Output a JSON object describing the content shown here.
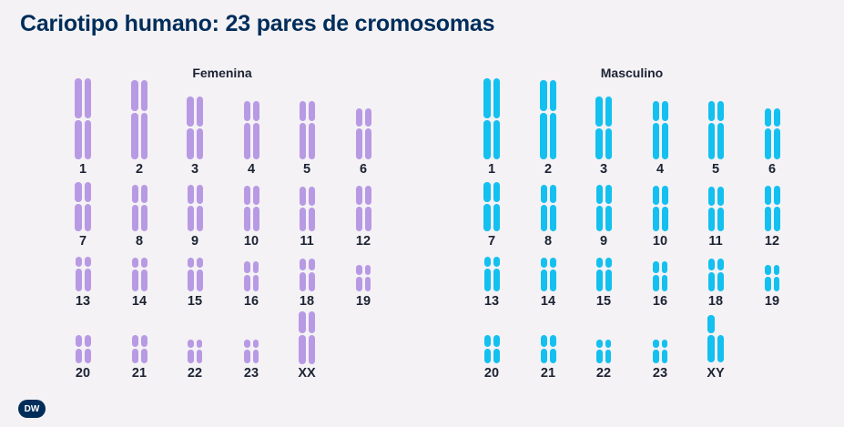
{
  "title": "Cariotipo humano: 23 pares de cromosomas",
  "logo_text": "DW",
  "colors": {
    "female": "#b89ae4",
    "male": "#14c0ef",
    "text": "#1c2233",
    "title": "#002d5a"
  },
  "panels": [
    {
      "id": "female",
      "title": "Femenina",
      "pairs": [
        {
          "label": "1"
        },
        {
          "label": "2"
        },
        {
          "label": "3"
        },
        {
          "label": "4"
        },
        {
          "label": "5"
        },
        {
          "label": "6"
        },
        {
          "label": "7"
        },
        {
          "label": "8"
        },
        {
          "label": "9"
        },
        {
          "label": "10"
        },
        {
          "label": "11"
        },
        {
          "label": "12"
        },
        {
          "label": "13"
        },
        {
          "label": "14"
        },
        {
          "label": "15"
        },
        {
          "label": "16"
        },
        {
          "label": "18"
        },
        {
          "label": "19"
        },
        {
          "label": "20"
        },
        {
          "label": "21"
        },
        {
          "label": "22"
        },
        {
          "label": "23"
        },
        {
          "label": "XX"
        }
      ]
    },
    {
      "id": "male",
      "title": "Masculino",
      "pairs": [
        {
          "label": "1"
        },
        {
          "label": "2"
        },
        {
          "label": "3"
        },
        {
          "label": "4"
        },
        {
          "label": "5"
        },
        {
          "label": "6"
        },
        {
          "label": "7"
        },
        {
          "label": "8"
        },
        {
          "label": "9"
        },
        {
          "label": "10"
        },
        {
          "label": "11"
        },
        {
          "label": "12"
        },
        {
          "label": "13"
        },
        {
          "label": "14"
        },
        {
          "label": "15"
        },
        {
          "label": "16"
        },
        {
          "label": "18"
        },
        {
          "label": "19"
        },
        {
          "label": "20"
        },
        {
          "label": "21"
        },
        {
          "label": "22"
        },
        {
          "label": "23"
        },
        {
          "label": "XY"
        }
      ]
    }
  ]
}
